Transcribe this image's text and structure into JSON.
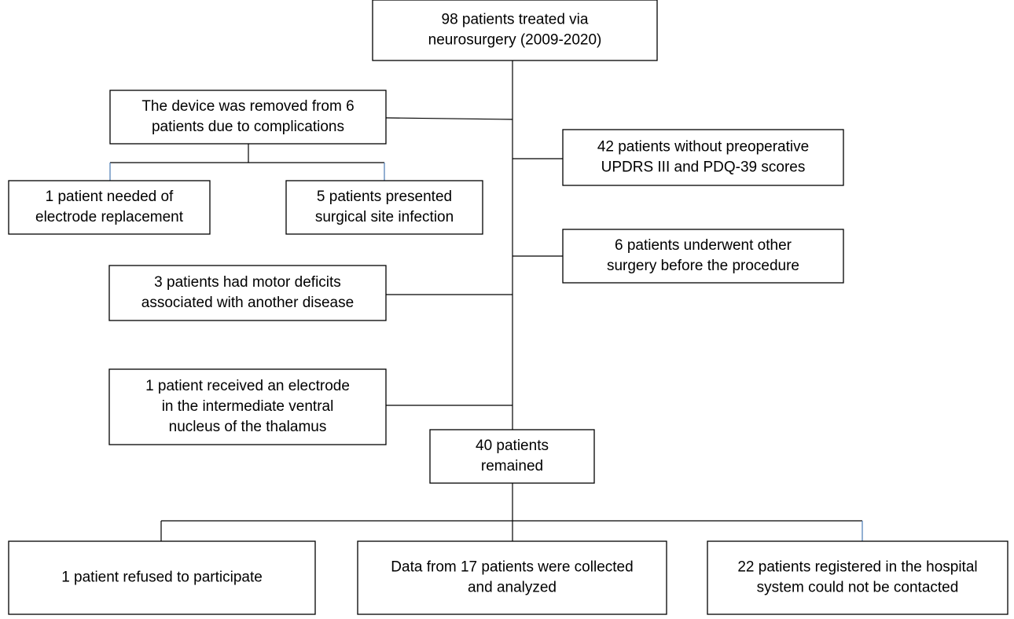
{
  "nodes": [
    {
      "lines": [
        "98 patients treated via",
        "neurosurgery (2009-2020)"
      ]
    },
    {
      "lines": [
        "The device was removed from 6",
        "patients due to complications"
      ]
    },
    {
      "lines": [
        "1 patient needed of",
        "electrode replacement"
      ]
    },
    {
      "lines": [
        "5 patients presented",
        "surgical site infection"
      ]
    },
    {
      "lines": [
        "42 patients without preoperative",
        "UPDRS III and PDQ-39 scores"
      ]
    },
    {
      "lines": [
        "6 patients underwent other",
        "surgery before the procedure"
      ]
    },
    {
      "lines": [
        "3 patients had motor deficits",
        "associated with another disease"
      ]
    },
    {
      "lines": [
        "1 patient received an electrode",
        "in the intermediate ventral",
        "nucleus of the thalamus"
      ]
    },
    {
      "lines": [
        "40 patients",
        "remained"
      ]
    },
    {
      "lines": [
        "1 patient refused to participate"
      ]
    },
    {
      "lines": [
        "Data from 17 patients were collected",
        "and analyzed"
      ]
    },
    {
      "lines": [
        "22 patients registered in the hospital",
        "system could not be contacted"
      ]
    }
  ]
}
